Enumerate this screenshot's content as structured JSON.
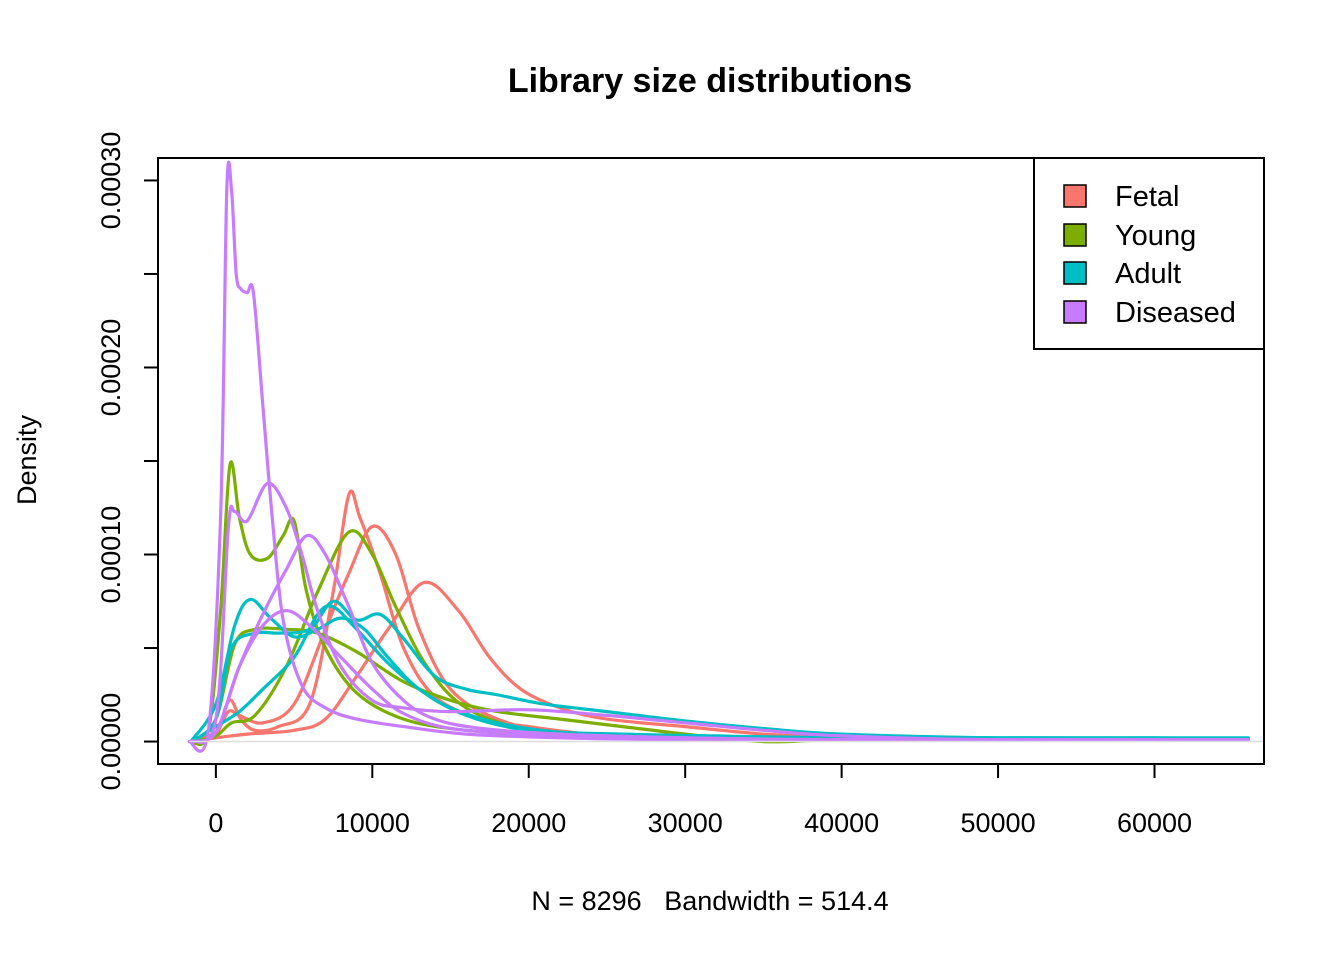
{
  "chart_data": {
    "type": "line",
    "title": "Library size distributions",
    "xlabel": "N = 8296   Bandwidth = 514.4",
    "ylabel": "Density",
    "xlim": [
      -3700,
      67000
    ],
    "ylim": [
      -1.2e-05,
      0.000312
    ],
    "xticks": [
      0,
      10000,
      20000,
      30000,
      40000,
      50000,
      60000
    ],
    "xtick_labels": [
      "0",
      "10000",
      "20000",
      "30000",
      "40000",
      "50000",
      "60000"
    ],
    "yticks": [
      0,
      5e-05,
      0.0001,
      0.00015,
      0.0002,
      0.00025,
      0.0003
    ],
    "ytick_labels": [
      "0.00000",
      "",
      "0.00010",
      "",
      "0.00020",
      "",
      "0.00030"
    ],
    "grid": false,
    "legend_position": "top-right",
    "legend": [
      {
        "name": "Fetal",
        "color": "#F8766D"
      },
      {
        "name": "Young",
        "color": "#7CAE00"
      },
      {
        "name": "Adult",
        "color": "#00BFC4"
      },
      {
        "name": "Diseased",
        "color": "#C77CFF"
      }
    ],
    "series": [
      {
        "group": "Fetal",
        "color": "#F8766D",
        "points": [
          [
            -1700,
            0
          ],
          [
            0,
            4e-06
          ],
          [
            600,
            1.8e-05
          ],
          [
            1000,
            2.2e-05
          ],
          [
            1600,
            1.2e-05
          ],
          [
            2500,
            6e-06
          ],
          [
            4000,
            8e-06
          ],
          [
            6000,
            2e-05
          ],
          [
            7500,
            8e-05
          ],
          [
            8500,
            0.000132
          ],
          [
            9200,
            0.00012
          ],
          [
            10500,
            9e-05
          ],
          [
            12000,
            5e-05
          ],
          [
            14000,
            2.4e-05
          ],
          [
            17000,
            1.2e-05
          ],
          [
            20000,
            8e-06
          ],
          [
            24000,
            4e-06
          ],
          [
            30000,
            2e-06
          ],
          [
            40000,
            1e-06
          ],
          [
            50000,
            1e-06
          ],
          [
            60000,
            1e-06
          ],
          [
            66000,
            1e-06
          ]
        ]
      },
      {
        "group": "Fetal",
        "color": "#F8766D",
        "points": [
          [
            -1500,
            0
          ],
          [
            0,
            5e-06
          ],
          [
            800,
            1.6e-05
          ],
          [
            1500,
            1.4e-05
          ],
          [
            3000,
            1e-05
          ],
          [
            5000,
            2e-05
          ],
          [
            7000,
            6e-05
          ],
          [
            8500,
            9e-05
          ],
          [
            10000,
            0.000115
          ],
          [
            11500,
            0.0001
          ],
          [
            13000,
            6e-05
          ],
          [
            15000,
            2.8e-05
          ],
          [
            18000,
            1.2e-05
          ],
          [
            22000,
            5e-06
          ],
          [
            30000,
            2e-06
          ],
          [
            40000,
            1e-06
          ],
          [
            50000,
            1e-06
          ],
          [
            60000,
            1e-06
          ],
          [
            66000,
            1e-06
          ]
        ]
      },
      {
        "group": "Fetal",
        "color": "#F8766D",
        "points": [
          [
            -1500,
            0
          ],
          [
            0,
            2e-06
          ],
          [
            2000,
            4e-06
          ],
          [
            5000,
            6e-06
          ],
          [
            7000,
            1.2e-05
          ],
          [
            9000,
            3.5e-05
          ],
          [
            11000,
            6e-05
          ],
          [
            13300,
            8.5e-05
          ],
          [
            15500,
            7e-05
          ],
          [
            17500,
            4.5e-05
          ],
          [
            19500,
            2.8e-05
          ],
          [
            22000,
            1.8e-05
          ],
          [
            25000,
            1.2e-05
          ],
          [
            30000,
            8e-06
          ],
          [
            35000,
            4e-06
          ],
          [
            40000,
            2e-06
          ],
          [
            50000,
            1e-06
          ],
          [
            66000,
            1e-06
          ]
        ]
      },
      {
        "group": "Young",
        "color": "#7CAE00",
        "points": [
          [
            -1600,
            0
          ],
          [
            -500,
            5e-06
          ],
          [
            300,
            7e-05
          ],
          [
            900,
            0.000148
          ],
          [
            1500,
            0.00012
          ],
          [
            2200,
            0.0001
          ],
          [
            3300,
            9.8e-05
          ],
          [
            4300,
            0.00011
          ],
          [
            5000,
            0.000118
          ],
          [
            5800,
            8e-05
          ],
          [
            7000,
            5e-05
          ],
          [
            9000,
            2.6e-05
          ],
          [
            12000,
            1.2e-05
          ],
          [
            16000,
            6e-06
          ],
          [
            22000,
            3e-06
          ],
          [
            30000,
            1e-06
          ],
          [
            40000,
            1e-06
          ],
          [
            66000,
            1e-06
          ]
        ]
      },
      {
        "group": "Young",
        "color": "#7CAE00",
        "points": [
          [
            -1500,
            0
          ],
          [
            0,
            3e-06
          ],
          [
            1000,
            1e-05
          ],
          [
            2500,
            1.4e-05
          ],
          [
            4500,
            4e-05
          ],
          [
            6500,
            8e-05
          ],
          [
            8500,
            0.000112
          ],
          [
            10000,
            0.0001
          ],
          [
            11500,
            7.2e-05
          ],
          [
            13500,
            4e-05
          ],
          [
            16000,
            1.8e-05
          ],
          [
            20000,
            6e-06
          ],
          [
            25000,
            2e-06
          ],
          [
            32000,
            1e-06
          ],
          [
            45000,
            1e-06
          ],
          [
            66000,
            1e-06
          ]
        ]
      },
      {
        "group": "Young",
        "color": "#7CAE00",
        "points": [
          [
            -1500,
            0
          ],
          [
            0,
            1.2e-05
          ],
          [
            1200,
            5.2e-05
          ],
          [
            2500,
            6e-05
          ],
          [
            4500,
            6e-05
          ],
          [
            6500,
            5.8e-05
          ],
          [
            9000,
            4.8e-05
          ],
          [
            12000,
            3.2e-05
          ],
          [
            15000,
            2.2e-05
          ],
          [
            18000,
            1.6e-05
          ],
          [
            22000,
            1.2e-05
          ],
          [
            26000,
            8e-06
          ],
          [
            30000,
            4e-06
          ],
          [
            35000,
            0
          ],
          [
            40000,
            1e-06
          ],
          [
            50000,
            1e-06
          ],
          [
            66000,
            1e-06
          ]
        ]
      },
      {
        "group": "Adult",
        "color": "#00BFC4",
        "points": [
          [
            -1600,
            0
          ],
          [
            0,
            2e-05
          ],
          [
            1200,
            6.2e-05
          ],
          [
            2200,
            7.6e-05
          ],
          [
            3500,
            6.6e-05
          ],
          [
            5000,
            5.6e-05
          ],
          [
            6500,
            6e-05
          ],
          [
            8000,
            6.6e-05
          ],
          [
            9500,
            6e-05
          ],
          [
            11000,
            4.5e-05
          ],
          [
            13000,
            2.8e-05
          ],
          [
            16000,
            1.4e-05
          ],
          [
            20000,
            6e-06
          ],
          [
            26000,
            4e-06
          ],
          [
            32000,
            3e-06
          ],
          [
            40000,
            2e-06
          ],
          [
            50000,
            2e-06
          ],
          [
            60000,
            2e-06
          ],
          [
            66000,
            1e-06
          ]
        ]
      },
      {
        "group": "Adult",
        "color": "#00BFC4",
        "points": [
          [
            -1500,
            0
          ],
          [
            0,
            1.2e-05
          ],
          [
            1000,
            5e-05
          ],
          [
            2500,
            5.8e-05
          ],
          [
            4000,
            5.8e-05
          ],
          [
            6000,
            6e-05
          ],
          [
            7500,
            7.5e-05
          ],
          [
            9000,
            6.5e-05
          ],
          [
            10500,
            6.8e-05
          ],
          [
            12000,
            5.5e-05
          ],
          [
            14000,
            3.5e-05
          ],
          [
            16000,
            2.8e-05
          ],
          [
            18000,
            2.5e-05
          ],
          [
            21000,
            2e-05
          ],
          [
            25000,
            1.6e-05
          ],
          [
            30000,
            1.1e-05
          ],
          [
            35000,
            7e-06
          ],
          [
            40000,
            4e-06
          ],
          [
            50000,
            2e-06
          ],
          [
            60000,
            2e-06
          ],
          [
            66000,
            2e-06
          ]
        ]
      },
      {
        "group": "Adult",
        "color": "#00BFC4",
        "points": [
          [
            -1500,
            0
          ],
          [
            0,
            8e-06
          ],
          [
            1500,
            1.6e-05
          ],
          [
            3000,
            2.8e-05
          ],
          [
            5000,
            4.5e-05
          ],
          [
            6500,
            6.8e-05
          ],
          [
            7500,
            7.2e-05
          ],
          [
            9000,
            6e-05
          ],
          [
            11000,
            4.2e-05
          ],
          [
            13000,
            2.8e-05
          ],
          [
            15000,
            1.8e-05
          ],
          [
            18000,
            1e-05
          ],
          [
            22000,
            5e-06
          ],
          [
            28000,
            3e-06
          ],
          [
            35000,
            2e-06
          ],
          [
            45000,
            1e-06
          ],
          [
            66000,
            1e-06
          ]
        ]
      },
      {
        "group": "Diseased",
        "color": "#C77CFF",
        "points": [
          [
            -1700,
            0
          ],
          [
            -500,
            5e-06
          ],
          [
            300,
            0.00012
          ],
          [
            700,
            0.000295
          ],
          [
            1000,
            0.000295
          ],
          [
            1300,
            0.00025
          ],
          [
            1600,
            0.000242
          ],
          [
            2000,
            0.00024
          ],
          [
            2400,
            0.00024
          ],
          [
            3000,
            0.00018
          ],
          [
            3600,
            0.00012
          ],
          [
            4300,
            6.5e-05
          ],
          [
            5500,
            3e-05
          ],
          [
            7000,
            1.8e-05
          ],
          [
            9000,
            1.2e-05
          ],
          [
            12000,
            8e-06
          ],
          [
            16000,
            4e-06
          ],
          [
            22000,
            2e-06
          ],
          [
            30000,
            1e-06
          ],
          [
            40000,
            1e-06
          ],
          [
            66000,
            1e-06
          ]
        ]
      },
      {
        "group": "Diseased",
        "color": "#C77CFF",
        "points": [
          [
            -1600,
            0
          ],
          [
            0,
            1.2e-05
          ],
          [
            800,
            0.000115
          ],
          [
            1200,
            0.000123
          ],
          [
            2000,
            0.000118
          ],
          [
            3300,
            0.000138
          ],
          [
            4500,
            0.000125
          ],
          [
            5500,
            0.0001
          ],
          [
            6500,
            7e-05
          ],
          [
            8000,
            4e-05
          ],
          [
            10000,
            2.2e-05
          ],
          [
            12000,
            1.8e-05
          ],
          [
            15000,
            1.6e-05
          ],
          [
            20000,
            1.7e-05
          ],
          [
            25000,
            1.4e-05
          ],
          [
            30000,
            1e-05
          ],
          [
            35000,
            6e-06
          ],
          [
            40000,
            3e-06
          ],
          [
            50000,
            1e-06
          ],
          [
            66000,
            1e-06
          ]
        ]
      },
      {
        "group": "Diseased",
        "color": "#C77CFF",
        "points": [
          [
            -1500,
            0
          ],
          [
            0,
            5e-06
          ],
          [
            1500,
            4e-05
          ],
          [
            3000,
            6.8e-05
          ],
          [
            4500,
            9.2e-05
          ],
          [
            5800,
            0.00011
          ],
          [
            7000,
            0.0001
          ],
          [
            8500,
            7.2e-05
          ],
          [
            10000,
            4.2e-05
          ],
          [
            12000,
            2.2e-05
          ],
          [
            14000,
            1.2e-05
          ],
          [
            17000,
            7e-06
          ],
          [
            22000,
            4e-06
          ],
          [
            30000,
            2e-06
          ],
          [
            40000,
            1e-06
          ],
          [
            66000,
            1e-06
          ]
        ]
      },
      {
        "group": "Diseased",
        "color": "#C77CFF",
        "points": [
          [
            -1500,
            0
          ],
          [
            0,
            5e-06
          ],
          [
            1500,
            4e-05
          ],
          [
            3000,
            6.2e-05
          ],
          [
            4500,
            7e-05
          ],
          [
            6000,
            6.2e-05
          ],
          [
            8000,
            4.5e-05
          ],
          [
            10000,
            2.8e-05
          ],
          [
            12000,
            1.5e-05
          ],
          [
            15000,
            7e-06
          ],
          [
            20000,
            4e-06
          ],
          [
            25000,
            3e-06
          ],
          [
            30000,
            2e-06
          ],
          [
            40000,
            1e-06
          ],
          [
            66000,
            1e-06
          ]
        ]
      }
    ]
  }
}
